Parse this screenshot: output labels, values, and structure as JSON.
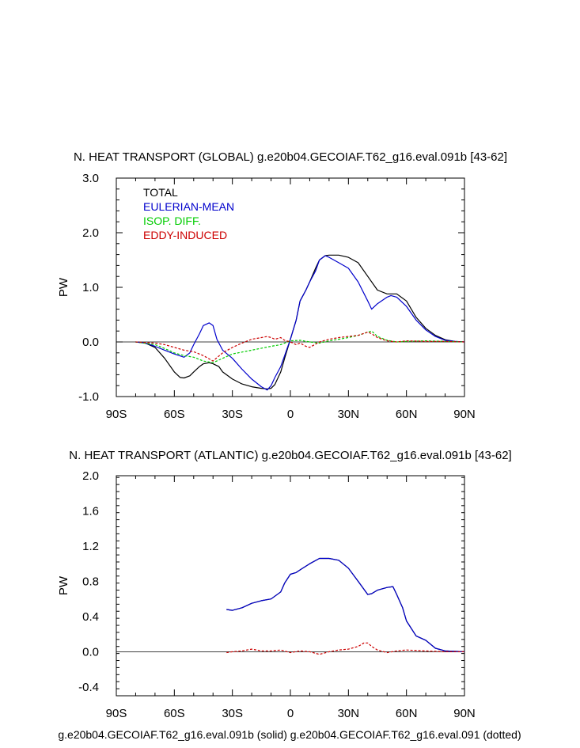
{
  "colors": {
    "total": "#000000",
    "eulerian": "#0000cc",
    "isop": "#00cc00",
    "eddy": "#cc0000"
  },
  "chart_data": [
    {
      "type": "line",
      "title": "N. HEAT TRANSPORT (GLOBAL) g.e20b04.GECOIAF.T62_g16.eval.091b [43-62]",
      "xlabel": "",
      "ylabel": "PW",
      "xlim": [
        -90,
        90
      ],
      "ylim": [
        -1.0,
        3.0
      ],
      "xticks": [
        -90,
        -60,
        -30,
        0,
        30,
        60,
        90
      ],
      "xtick_labels": [
        "90S",
        "60S",
        "30S",
        "0",
        "30N",
        "60N",
        "90N"
      ],
      "yticks": [
        -1.0,
        0.0,
        1.0,
        2.0,
        3.0
      ],
      "ytick_labels": [
        "-1.0",
        "0.0",
        "1.0",
        "2.0",
        "3.0"
      ],
      "legend": [
        "TOTAL",
        "EULERIAN-MEAN",
        "ISOP. DIFF.",
        "EDDY-INDUCED"
      ],
      "series": [
        {
          "name": "TOTAL",
          "color_key": "total",
          "x": [
            -80,
            -75,
            -70,
            -65,
            -60,
            -57,
            -55,
            -52,
            -50,
            -47,
            -45,
            -42,
            -40,
            -37,
            -35,
            -30,
            -25,
            -20,
            -15,
            -12,
            -10,
            -8,
            -5,
            -3,
            0,
            3,
            5,
            8,
            10,
            13,
            15,
            18,
            20,
            25,
            30,
            35,
            40,
            45,
            50,
            55,
            60,
            65,
            70,
            75,
            80,
            85,
            90
          ],
          "y": [
            0,
            -0.02,
            -0.1,
            -0.3,
            -0.55,
            -0.65,
            -0.66,
            -0.62,
            -0.55,
            -0.45,
            -0.4,
            -0.38,
            -0.4,
            -0.45,
            -0.55,
            -0.68,
            -0.77,
            -0.82,
            -0.85,
            -0.86,
            -0.85,
            -0.78,
            -0.55,
            -0.3,
            0.05,
            0.4,
            0.75,
            0.95,
            1.1,
            1.35,
            1.5,
            1.58,
            1.59,
            1.59,
            1.55,
            1.45,
            1.2,
            0.95,
            0.88,
            0.88,
            0.75,
            0.45,
            0.25,
            0.12,
            0.04,
            0.01,
            0
          ]
        },
        {
          "name": "EULERIAN-MEAN",
          "color_key": "eulerian",
          "x": [
            -80,
            -75,
            -70,
            -65,
            -60,
            -55,
            -52,
            -50,
            -47,
            -45,
            -42,
            -40,
            -38,
            -35,
            -30,
            -25,
            -20,
            -15,
            -12,
            -10,
            -8,
            -5,
            -3,
            0,
            3,
            5,
            8,
            10,
            13,
            15,
            18,
            20,
            25,
            30,
            35,
            40,
            42,
            45,
            50,
            52,
            55,
            60,
            65,
            70,
            75,
            80,
            85,
            90
          ],
          "y": [
            0,
            -0.02,
            -0.08,
            -0.15,
            -0.22,
            -0.28,
            -0.2,
            -0.05,
            0.15,
            0.3,
            0.35,
            0.3,
            0.05,
            -0.15,
            -0.3,
            -0.5,
            -0.68,
            -0.82,
            -0.88,
            -0.8,
            -0.65,
            -0.45,
            -0.25,
            0.05,
            0.4,
            0.75,
            0.95,
            1.1,
            1.3,
            1.5,
            1.58,
            1.55,
            1.45,
            1.35,
            1.1,
            0.75,
            0.6,
            0.7,
            0.82,
            0.85,
            0.82,
            0.65,
            0.4,
            0.22,
            0.1,
            0.03,
            0.01,
            0
          ]
        },
        {
          "name": "ISOP. DIFF.",
          "color_key": "isop",
          "x": [
            -80,
            -70,
            -65,
            -60,
            -55,
            -50,
            -45,
            -40,
            -35,
            -30,
            -20,
            -10,
            -5,
            0,
            5,
            10,
            15,
            20,
            25,
            30,
            35,
            40,
            42,
            45,
            50,
            55,
            60,
            70,
            80,
            90
          ],
          "y": [
            0,
            -0.05,
            -0.12,
            -0.2,
            -0.25,
            -0.28,
            -0.35,
            -0.38,
            -0.3,
            -0.22,
            -0.15,
            -0.08,
            -0.05,
            0.02,
            0.03,
            0,
            -0.02,
            0.02,
            0.05,
            0.08,
            0.12,
            0.18,
            0.2,
            0.1,
            0.03,
            0,
            0.01,
            0.02,
            0.01,
            0
          ]
        },
        {
          "name": "EDDY-INDUCED",
          "color_key": "eddy",
          "x": [
            -80,
            -70,
            -65,
            -60,
            -55,
            -50,
            -45,
            -40,
            -35,
            -30,
            -25,
            -20,
            -15,
            -12,
            -10,
            -8,
            -5,
            -3,
            0,
            3,
            5,
            8,
            10,
            15,
            20,
            25,
            30,
            35,
            40,
            42,
            45,
            50,
            55,
            60,
            70,
            80,
            90
          ],
          "y": [
            0,
            -0.02,
            -0.05,
            -0.1,
            -0.15,
            -0.18,
            -0.25,
            -0.35,
            -0.2,
            -0.1,
            -0.02,
            0.05,
            0.08,
            0.1,
            0.08,
            0.05,
            0.08,
            0.03,
            0,
            -0.05,
            -0.02,
            -0.08,
            -0.1,
            0,
            0.05,
            0.08,
            0.1,
            0.12,
            0.18,
            0.15,
            0.08,
            0.02,
            0,
            0.02,
            0.01,
            0.01,
            0
          ]
        }
      ]
    },
    {
      "type": "line",
      "title": "N. HEAT TRANSPORT (ATLANTIC) g.e20b04.GECOIAF.T62_g16.eval.091b [43-62]",
      "xlabel": "g.e20b04.GECOIAF.T62_g16.eval.091b (solid) g.e20b04.GECOIAF.T62_g16.eval.091 (dotted)",
      "ylabel": "PW",
      "xlim": [
        -90,
        90
      ],
      "ylim": [
        -0.5,
        2.0
      ],
      "xticks": [
        -90,
        -60,
        -30,
        0,
        30,
        60,
        90
      ],
      "xtick_labels": [
        "90S",
        "60S",
        "30S",
        "0",
        "30N",
        "60N",
        "90N"
      ],
      "yticks": [
        -0.4,
        0.0,
        0.4,
        0.8,
        1.2,
        1.6,
        2.0
      ],
      "ytick_labels": [
        "-0.4",
        "0.0",
        "0.4",
        "0.8",
        "1.2",
        "1.6",
        "2.0"
      ],
      "series": [
        {
          "name": "TOTAL",
          "color_key": "total",
          "x": [
            -33,
            -30,
            -25,
            -20,
            -15,
            -10,
            -5,
            -3,
            0,
            3,
            5,
            10,
            15,
            20,
            25,
            30,
            35,
            40,
            42,
            45,
            50,
            53,
            55,
            58,
            60,
            65,
            70,
            75,
            80,
            85,
            90
          ],
          "y": [
            0.48,
            0.47,
            0.5,
            0.55,
            0.58,
            0.6,
            0.68,
            0.78,
            0.88,
            0.9,
            0.93,
            1.0,
            1.06,
            1.06,
            1.04,
            0.95,
            0.8,
            0.65,
            0.66,
            0.7,
            0.73,
            0.74,
            0.65,
            0.5,
            0.35,
            0.18,
            0.13,
            0.04,
            0.01,
            0.005,
            0
          ]
        },
        {
          "name": "EULERIAN-MEAN",
          "color_key": "eulerian",
          "x": [
            -33,
            -30,
            -25,
            -20,
            -15,
            -10,
            -5,
            -3,
            0,
            3,
            5,
            10,
            15,
            20,
            25,
            30,
            35,
            40,
            42,
            45,
            50,
            53,
            55,
            58,
            60,
            65,
            70,
            75,
            80,
            85,
            90
          ],
          "y": [
            0.48,
            0.47,
            0.5,
            0.55,
            0.58,
            0.6,
            0.68,
            0.78,
            0.88,
            0.9,
            0.93,
            1.0,
            1.06,
            1.06,
            1.04,
            0.95,
            0.8,
            0.65,
            0.66,
            0.7,
            0.73,
            0.74,
            0.65,
            0.5,
            0.35,
            0.18,
            0.13,
            0.04,
            0.01,
            0.005,
            0
          ]
        },
        {
          "name": "EDDY-INDUCED",
          "color_key": "eddy",
          "x": [
            -33,
            -30,
            -25,
            -20,
            -15,
            -10,
            -5,
            0,
            5,
            10,
            15,
            20,
            25,
            30,
            35,
            38,
            40,
            42,
            45,
            50,
            55,
            60,
            70,
            80,
            90
          ],
          "y": [
            -0.01,
            0,
            0.01,
            0.03,
            0.01,
            0.01,
            0.02,
            -0.01,
            0.01,
            0,
            -0.03,
            0,
            0.02,
            0.03,
            0.06,
            0.1,
            0.1,
            0.06,
            0.02,
            -0.01,
            0.01,
            0.02,
            0.01,
            0,
            0
          ]
        }
      ]
    }
  ]
}
